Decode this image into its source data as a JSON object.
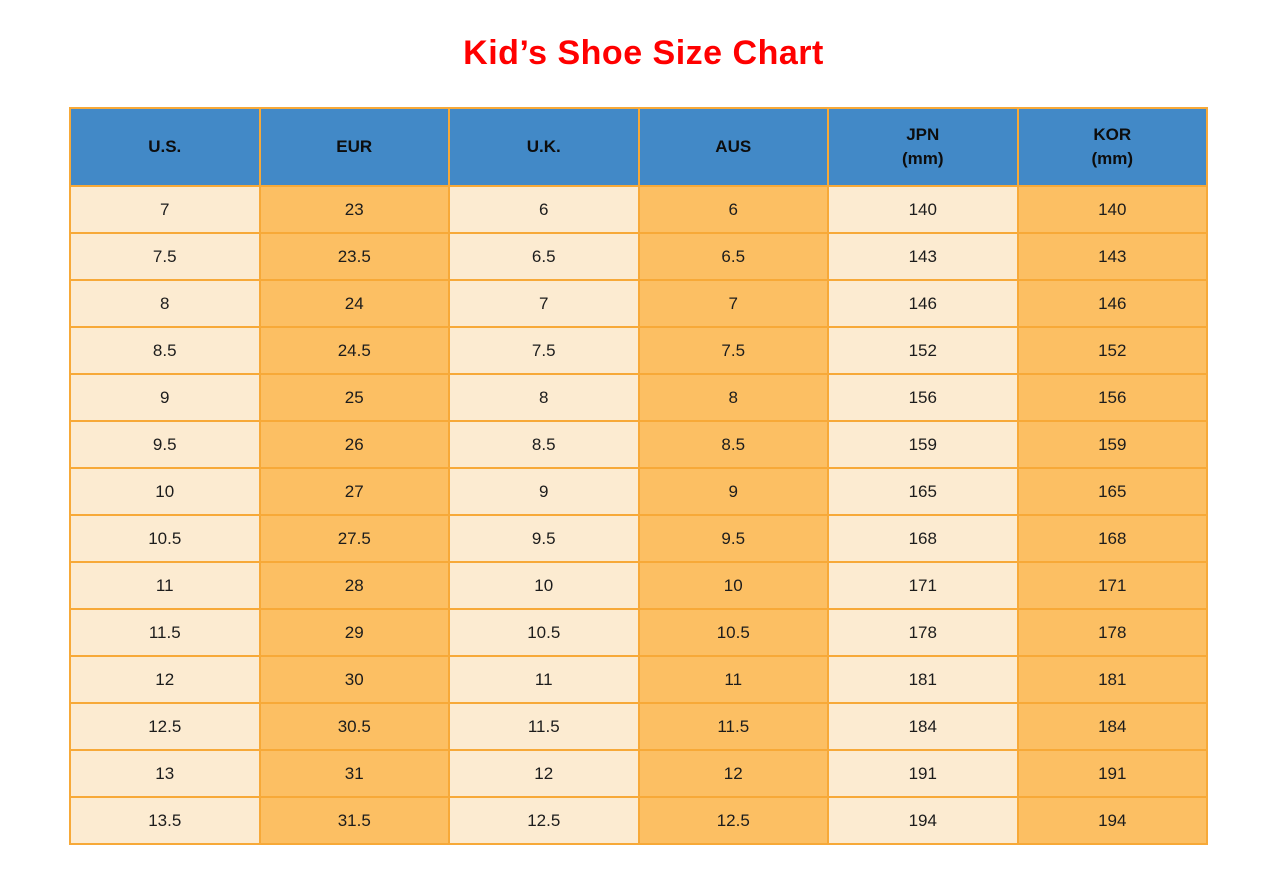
{
  "title": "Kid’s Shoe Size Chart",
  "colors": {
    "title_red": "#ff0000",
    "header_blue": "#4289c7",
    "cell_cream": "#fcebd1",
    "cell_orange": "#fcbf63",
    "border_orange": "#f7a938",
    "text": "#1c1c1c"
  },
  "chart_data": {
    "type": "table",
    "title": "Kid’s Shoe Size Chart",
    "columns": [
      {
        "key": "us",
        "label": "U.S.",
        "sub": ""
      },
      {
        "key": "eur",
        "label": "EUR",
        "sub": ""
      },
      {
        "key": "uk",
        "label": "U.K.",
        "sub": ""
      },
      {
        "key": "aus",
        "label": "AUS",
        "sub": ""
      },
      {
        "key": "jpn",
        "label": "JPN",
        "sub": "(mm)"
      },
      {
        "key": "kor",
        "label": "KOR",
        "sub": "(mm)"
      }
    ],
    "rows": [
      [
        "7",
        "23",
        "6",
        "6",
        "140",
        "140"
      ],
      [
        "7.5",
        "23.5",
        "6.5",
        "6.5",
        "143",
        "143"
      ],
      [
        "8",
        "24",
        "7",
        "7",
        "146",
        "146"
      ],
      [
        "8.5",
        "24.5",
        "7.5",
        "7.5",
        "152",
        "152"
      ],
      [
        "9",
        "25",
        "8",
        "8",
        "156",
        "156"
      ],
      [
        "9.5",
        "26",
        "8.5",
        "8.5",
        "159",
        "159"
      ],
      [
        "10",
        "27",
        "9",
        "9",
        "165",
        "165"
      ],
      [
        "10.5",
        "27.5",
        "9.5",
        "9.5",
        "168",
        "168"
      ],
      [
        "11",
        "28",
        "10",
        "10",
        "171",
        "171"
      ],
      [
        "11.5",
        "29",
        "10.5",
        "10.5",
        "178",
        "178"
      ],
      [
        "12",
        "30",
        "11",
        "11",
        "181",
        "181"
      ],
      [
        "12.5",
        "30.5",
        "11.5",
        "11.5",
        "184",
        "184"
      ],
      [
        "13",
        "31",
        "12",
        "12",
        "191",
        "191"
      ],
      [
        "13.5",
        "31.5",
        "12.5",
        "12.5",
        "194",
        "194"
      ]
    ]
  }
}
